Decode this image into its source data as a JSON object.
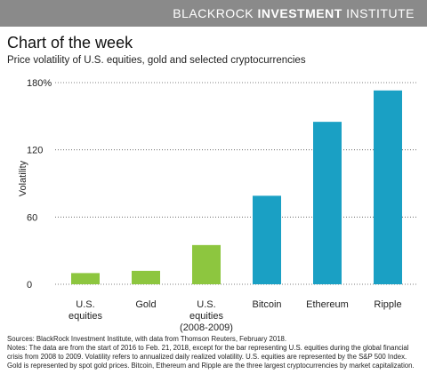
{
  "header": {
    "brand_light": "BLACKROCK",
    "brand_bold": "INVESTMENT",
    "brand_end": "INSTITUTE"
  },
  "title": "Chart of the week",
  "subtitle": "Price volatility of U.S. equities, gold and selected cryptocurrencies",
  "footer": {
    "sources": "Sources: BlackRock Investment Institute, with data from Thomson Reuters, February 2018.",
    "notes_line1": "Notes: The data are from the start of 2016 to Feb. 21, 2018, except for the bar representing U.S. equities during the global financial",
    "notes_line2": "crisis from 2008 to 2009. Volatility refers to annualized daily realized volatility. U.S. equities are represented by the S&P 500 Index.",
    "notes_line3": "Gold is represented by spot gold prices. Bitcoin, Ethereum and Ripple are the three largest cryptocurrencies by market capitalization."
  },
  "chart_data": {
    "type": "bar",
    "title": "Chart of the week",
    "subtitle": "Price volatility of U.S. equities, gold and selected cryptocurrencies",
    "xlabel": "",
    "ylabel": "Volatility",
    "ylim": [
      0,
      180
    ],
    "yticks": [
      0,
      60,
      120,
      180
    ],
    "ytick_labels": [
      "0",
      "60",
      "120",
      "180%"
    ],
    "grid": "horizontal dotted",
    "categories": [
      [
        "U.S.",
        "equities"
      ],
      [
        "Gold"
      ],
      [
        "U.S.",
        "equities",
        "(2008-2009)"
      ],
      [
        "Bitcoin"
      ],
      [
        "Ethereum"
      ],
      [
        "Ripple"
      ]
    ],
    "values": [
      10,
      12,
      35,
      79,
      145,
      173
    ],
    "colors": [
      "#8dc63f",
      "#8dc63f",
      "#8dc63f",
      "#1aa0c4",
      "#1aa0c4",
      "#1aa0c4"
    ]
  }
}
